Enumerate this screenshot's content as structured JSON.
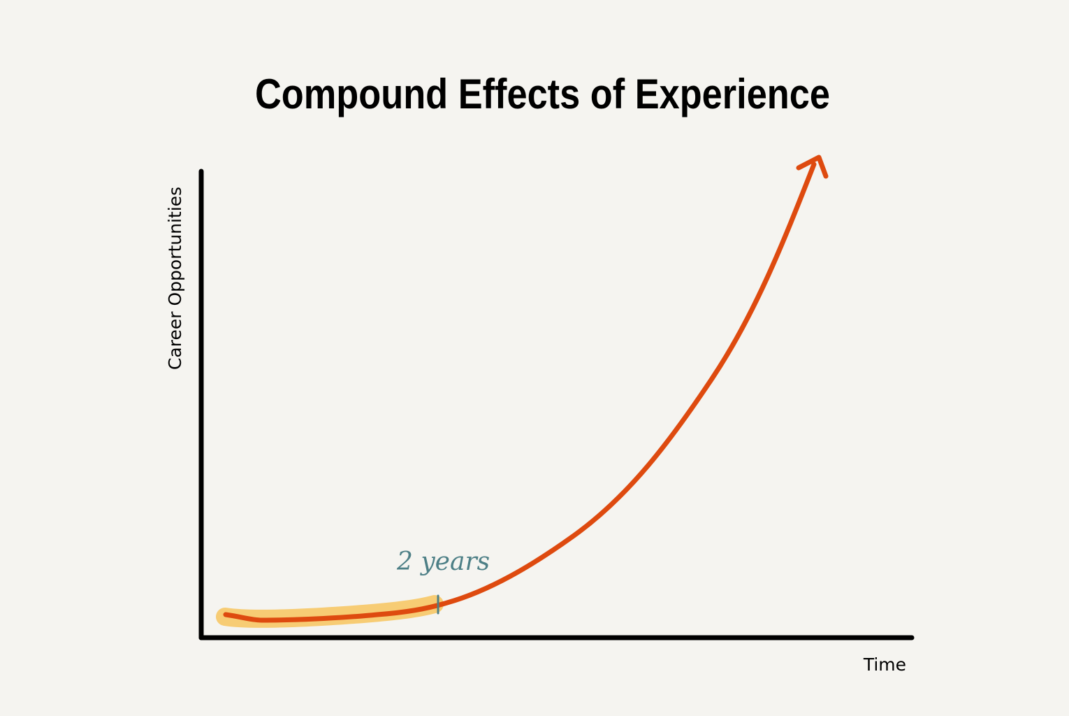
{
  "chart_data": {
    "type": "line",
    "title": "Compound Effects of Experience",
    "xlabel": "Time",
    "ylabel": "Career Opportunities",
    "annotation": "2 years",
    "shape": "exponential growth with arrow at end; first segment up to annotation highlighted",
    "grid": false,
    "colors": {
      "curve": "#de4a0f",
      "highlight": "#f7c45e",
      "annotation": "#4d7f86",
      "axes": "#000000",
      "background": "#f5f4f0"
    }
  }
}
